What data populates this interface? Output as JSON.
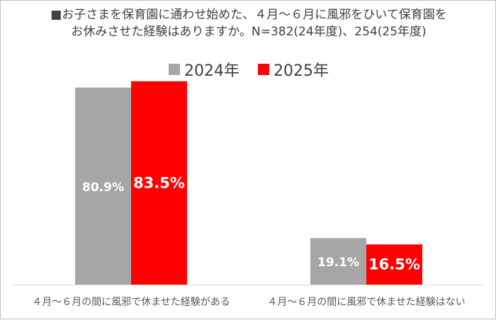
{
  "chart_data": {
    "type": "bar",
    "title_line1": "■お子さまを保育園に通わせ始めた、４月～６月に風邪をひいて保育園を",
    "title_line2": "お休みさせた経験はありますか。N=382(24年度)、254(25年度)",
    "categories": [
      "４月～６月の間に風邪で休ませた経験がある",
      "４月～６月の間に風邪で休ませた経験はない"
    ],
    "series": [
      {
        "name": "2024年",
        "color": "#a6a6a6",
        "values": [
          80.9,
          19.1
        ],
        "labels": [
          "80.9%",
          "19.1%"
        ]
      },
      {
        "name": "2025年",
        "color": "#ff0000",
        "values": [
          83.5,
          16.5
        ],
        "labels": [
          "83.5%",
          "16.5%"
        ]
      }
    ],
    "ylim": [
      0,
      100
    ],
    "legend_position": "top",
    "grid": false
  }
}
